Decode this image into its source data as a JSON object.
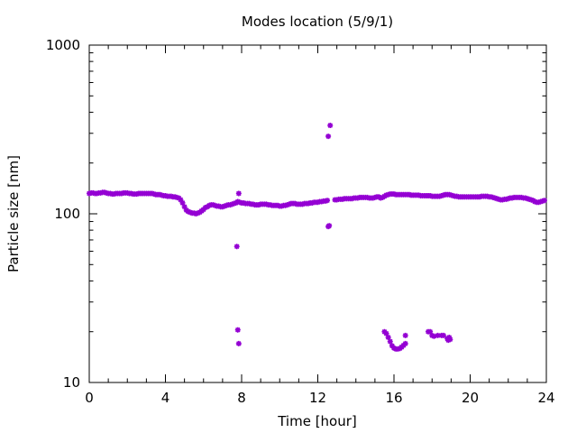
{
  "chart_data": {
    "type": "scatter",
    "title": "Modes location (5/9/1)",
    "xlabel": "Time [hour]",
    "ylabel": "Particle size [nm]",
    "xlim": [
      0,
      24
    ],
    "ylim": [
      10,
      1000
    ],
    "yscale": "log",
    "grid": false,
    "legend": "none",
    "marker_color": "#9400d3",
    "x_ticks": [
      "0",
      "4",
      "8",
      "12",
      "16",
      "20",
      "24"
    ],
    "y_ticks": [
      "10",
      "100",
      "1000"
    ],
    "series": [
      {
        "points": [
          [
            0.0,
            132
          ],
          [
            0.1,
            133
          ],
          [
            0.2,
            133
          ],
          [
            0.3,
            132
          ],
          [
            0.4,
            132
          ],
          [
            0.5,
            133
          ],
          [
            0.6,
            133
          ],
          [
            0.7,
            134
          ],
          [
            0.8,
            134
          ],
          [
            0.9,
            133
          ],
          [
            1.0,
            132
          ],
          [
            1.1,
            132
          ],
          [
            1.2,
            131
          ],
          [
            1.3,
            131
          ],
          [
            1.4,
            132
          ],
          [
            1.5,
            132
          ],
          [
            1.6,
            132
          ],
          [
            1.7,
            132
          ],
          [
            1.8,
            133
          ],
          [
            1.9,
            133
          ],
          [
            2.0,
            133
          ],
          [
            2.1,
            132
          ],
          [
            2.2,
            132
          ],
          [
            2.3,
            131
          ],
          [
            2.4,
            131
          ],
          [
            2.5,
            131
          ],
          [
            2.6,
            132
          ],
          [
            2.7,
            132
          ],
          [
            2.8,
            132
          ],
          [
            2.9,
            132
          ],
          [
            3.0,
            132
          ],
          [
            3.1,
            132
          ],
          [
            3.2,
            132
          ],
          [
            3.3,
            132
          ],
          [
            3.4,
            131
          ],
          [
            3.5,
            130
          ],
          [
            3.6,
            130
          ],
          [
            3.7,
            130
          ],
          [
            3.8,
            129
          ],
          [
            3.9,
            128
          ],
          [
            4.0,
            128
          ],
          [
            4.1,
            127
          ],
          [
            4.2,
            127
          ],
          [
            4.3,
            127
          ],
          [
            4.4,
            126
          ],
          [
            4.5,
            126
          ],
          [
            4.6,
            125
          ],
          [
            4.7,
            124
          ],
          [
            4.8,
            121
          ],
          [
            4.9,
            116
          ],
          [
            5.0,
            110
          ],
          [
            5.1,
            105
          ],
          [
            5.2,
            103
          ],
          [
            5.3,
            102
          ],
          [
            5.4,
            101
          ],
          [
            5.5,
            101
          ],
          [
            5.6,
            100
          ],
          [
            5.7,
            101
          ],
          [
            5.8,
            102
          ],
          [
            5.9,
            104
          ],
          [
            6.0,
            106
          ],
          [
            6.1,
            109
          ],
          [
            6.2,
            110
          ],
          [
            6.3,
            112
          ],
          [
            6.4,
            113
          ],
          [
            6.5,
            113
          ],
          [
            6.6,
            112
          ],
          [
            6.7,
            111
          ],
          [
            6.8,
            111
          ],
          [
            6.9,
            110
          ],
          [
            7.0,
            110
          ],
          [
            7.1,
            111
          ],
          [
            7.2,
            112
          ],
          [
            7.3,
            113
          ],
          [
            7.4,
            113
          ],
          [
            7.5,
            114
          ],
          [
            7.6,
            115
          ],
          [
            7.7,
            116
          ],
          [
            7.8,
            118
          ],
          [
            7.9,
            117
          ],
          [
            8.0,
            116
          ],
          [
            8.1,
            116
          ],
          [
            8.2,
            115
          ],
          [
            8.3,
            115
          ],
          [
            8.4,
            115
          ],
          [
            8.5,
            114
          ],
          [
            8.6,
            114
          ],
          [
            8.7,
            113
          ],
          [
            8.8,
            113
          ],
          [
            8.9,
            113
          ],
          [
            9.0,
            114
          ],
          [
            9.1,
            114
          ],
          [
            9.2,
            114
          ],
          [
            9.3,
            114
          ],
          [
            9.4,
            113
          ],
          [
            9.5,
            113
          ],
          [
            9.6,
            112
          ],
          [
            9.7,
            112
          ],
          [
            9.8,
            112
          ],
          [
            9.9,
            112
          ],
          [
            10.0,
            111
          ],
          [
            10.1,
            111
          ],
          [
            10.2,
            112
          ],
          [
            10.3,
            112
          ],
          [
            10.4,
            113
          ],
          [
            10.5,
            114
          ],
          [
            10.6,
            115
          ],
          [
            10.7,
            115
          ],
          [
            10.8,
            115
          ],
          [
            10.9,
            114
          ],
          [
            11.0,
            114
          ],
          [
            11.1,
            114
          ],
          [
            11.2,
            114
          ],
          [
            11.3,
            115
          ],
          [
            11.4,
            115
          ],
          [
            11.5,
            115
          ],
          [
            11.6,
            116
          ],
          [
            11.7,
            116
          ],
          [
            11.8,
            117
          ],
          [
            11.9,
            117
          ],
          [
            12.0,
            117
          ],
          [
            12.1,
            118
          ],
          [
            12.2,
            118
          ],
          [
            12.3,
            119
          ],
          [
            12.4,
            119
          ],
          [
            12.5,
            120
          ],
          [
            12.9,
            121
          ],
          [
            13.0,
            121
          ],
          [
            13.1,
            122
          ],
          [
            13.2,
            122
          ],
          [
            13.3,
            122
          ],
          [
            13.4,
            123
          ],
          [
            13.5,
            123
          ],
          [
            13.6,
            123
          ],
          [
            13.7,
            123
          ],
          [
            13.8,
            123
          ],
          [
            13.9,
            124
          ],
          [
            14.0,
            124
          ],
          [
            14.1,
            124
          ],
          [
            14.2,
            125
          ],
          [
            14.3,
            125
          ],
          [
            14.4,
            125
          ],
          [
            14.5,
            125
          ],
          [
            14.6,
            125
          ],
          [
            14.7,
            124
          ],
          [
            14.8,
            124
          ],
          [
            14.9,
            124
          ],
          [
            15.0,
            125
          ],
          [
            15.1,
            126
          ],
          [
            15.2,
            126
          ],
          [
            15.3,
            124
          ],
          [
            15.4,
            125
          ],
          [
            15.5,
            127
          ],
          [
            15.6,
            129
          ],
          [
            15.7,
            130
          ],
          [
            15.8,
            131
          ],
          [
            15.9,
            131
          ],
          [
            16.0,
            131
          ],
          [
            16.1,
            130
          ],
          [
            16.2,
            130
          ],
          [
            16.3,
            130
          ],
          [
            16.4,
            130
          ],
          [
            16.5,
            130
          ],
          [
            16.6,
            130
          ],
          [
            16.7,
            130
          ],
          [
            16.8,
            130
          ],
          [
            16.9,
            129
          ],
          [
            17.0,
            129
          ],
          [
            17.1,
            129
          ],
          [
            17.2,
            129
          ],
          [
            17.3,
            129
          ],
          [
            17.4,
            128
          ],
          [
            17.5,
            128
          ],
          [
            17.6,
            128
          ],
          [
            17.7,
            128
          ],
          [
            17.8,
            128
          ],
          [
            17.9,
            128
          ],
          [
            18.0,
            127
          ],
          [
            18.1,
            127
          ],
          [
            18.2,
            127
          ],
          [
            18.3,
            127
          ],
          [
            18.4,
            127
          ],
          [
            18.5,
            128
          ],
          [
            18.6,
            129
          ],
          [
            18.7,
            130
          ],
          [
            18.8,
            130
          ],
          [
            18.9,
            130
          ],
          [
            19.0,
            129
          ],
          [
            19.1,
            128
          ],
          [
            19.2,
            127
          ],
          [
            19.3,
            127
          ],
          [
            19.4,
            126
          ],
          [
            19.5,
            126
          ],
          [
            19.6,
            126
          ],
          [
            19.7,
            126
          ],
          [
            19.8,
            126
          ],
          [
            19.9,
            126
          ],
          [
            20.0,
            126
          ],
          [
            20.1,
            126
          ],
          [
            20.2,
            126
          ],
          [
            20.3,
            126
          ],
          [
            20.4,
            126
          ],
          [
            20.5,
            126
          ],
          [
            20.6,
            127
          ],
          [
            20.7,
            127
          ],
          [
            20.8,
            127
          ],
          [
            20.9,
            127
          ],
          [
            21.0,
            126
          ],
          [
            21.1,
            126
          ],
          [
            21.2,
            125
          ],
          [
            21.3,
            124
          ],
          [
            21.4,
            123
          ],
          [
            21.5,
            122
          ],
          [
            21.6,
            121
          ],
          [
            21.7,
            121
          ],
          [
            21.8,
            122
          ],
          [
            21.9,
            122
          ],
          [
            22.0,
            123
          ],
          [
            22.1,
            124
          ],
          [
            22.2,
            124
          ],
          [
            22.3,
            125
          ],
          [
            22.4,
            125
          ],
          [
            22.5,
            125
          ],
          [
            22.6,
            125
          ],
          [
            22.7,
            125
          ],
          [
            22.8,
            124
          ],
          [
            22.9,
            124
          ],
          [
            23.0,
            123
          ],
          [
            23.1,
            122
          ],
          [
            23.2,
            121
          ],
          [
            23.3,
            120
          ],
          [
            23.4,
            118
          ],
          [
            23.5,
            117
          ],
          [
            23.6,
            117
          ],
          [
            23.7,
            118
          ],
          [
            23.8,
            119
          ],
          [
            23.9,
            120
          ],
          [
            7.75,
            64
          ],
          [
            7.8,
            20.5
          ],
          [
            7.85,
            17
          ],
          [
            7.85,
            132
          ],
          [
            12.55,
            84
          ],
          [
            12.6,
            85
          ],
          [
            12.55,
            288
          ],
          [
            12.65,
            334
          ],
          [
            15.5,
            20
          ],
          [
            15.6,
            19.5
          ],
          [
            15.7,
            18.5
          ],
          [
            15.8,
            17.5
          ],
          [
            15.9,
            16.5
          ],
          [
            16.0,
            16
          ],
          [
            16.1,
            15.8
          ],
          [
            16.2,
            15.8
          ],
          [
            16.3,
            15.9
          ],
          [
            16.4,
            16.2
          ],
          [
            16.5,
            16.6
          ],
          [
            16.6,
            17
          ],
          [
            16.6,
            19
          ],
          [
            17.8,
            20
          ],
          [
            17.9,
            20
          ],
          [
            18.0,
            19
          ],
          [
            18.1,
            18.8
          ],
          [
            18.3,
            19
          ],
          [
            18.5,
            19
          ],
          [
            18.6,
            19
          ],
          [
            18.8,
            18.2
          ],
          [
            18.85,
            17.8
          ],
          [
            18.9,
            18.5
          ],
          [
            18.95,
            18
          ]
        ]
      }
    ]
  }
}
